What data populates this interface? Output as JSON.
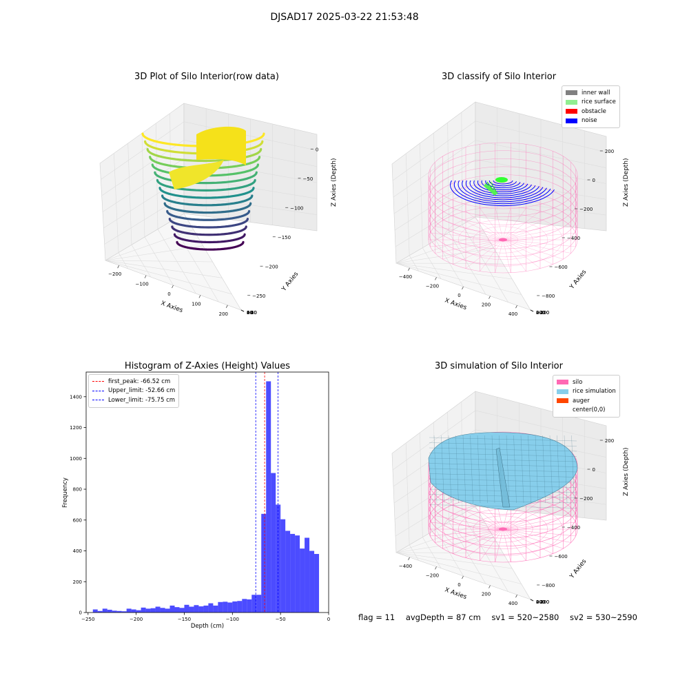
{
  "suptitle": "DJSAD17 2025-03-22 21:53:48",
  "footer": {
    "flag": "flag = 11",
    "avg_depth": "avgDepth = 87 cm",
    "sv1": "sv1 = 520~2580",
    "sv2": "sv2 = 530~2590"
  },
  "chart_data": [
    {
      "type": "scatter",
      "projection": "3d",
      "title": "3D Plot of Silo Interior(row data)",
      "xlabel": "X Axies",
      "ylabel": "Y Axies",
      "zlabel": "Z Axies (Depth)",
      "x_ticks": [
        "−200",
        "−100",
        "0",
        "100",
        "200"
      ],
      "y_ticks": [
        "−60",
        "−40",
        "−20",
        "0",
        "20",
        "40",
        "60"
      ],
      "z_ticks": [
        "−250",
        "−200",
        "−150",
        "−100",
        "−50",
        "0"
      ],
      "xlim": [
        -250,
        250
      ],
      "ylim": [
        -60,
        60
      ],
      "zlim": [
        -250,
        0
      ],
      "colormap": "viridis"
    },
    {
      "type": "scatter",
      "projection": "3d",
      "title": "3D classify of Silo Interior",
      "xlabel": "X Axies",
      "ylabel": "Y Axies",
      "zlabel": "Z Axies (Depth)",
      "x_ticks": [
        "−400",
        "−200",
        "0",
        "200",
        "400"
      ],
      "y_ticks": [
        "−400",
        "−200",
        "0",
        "200",
        "400"
      ],
      "z_ticks": [
        "−800",
        "−600",
        "−400",
        "−200",
        "0",
        "200"
      ],
      "legend": [
        {
          "label": "inner wall",
          "color": "#808080"
        },
        {
          "label": "rice surface",
          "color": "#90ee90"
        },
        {
          "label": "obstacle",
          "color": "#ff0000"
        },
        {
          "label": "noise",
          "color": "#0000ff"
        }
      ],
      "legend_position": "top-right"
    },
    {
      "type": "bar",
      "title": "Histogram of Z-Axies (Height) Values",
      "xlabel": "Depth (cm)",
      "ylabel": "Frequency",
      "xlim": [
        -252,
        0
      ],
      "ylim": [
        0,
        1560
      ],
      "x_ticks": [
        -250,
        -200,
        -150,
        -100,
        -50,
        0
      ],
      "y_ticks": [
        0,
        200,
        400,
        600,
        800,
        1000,
        1200,
        1400
      ],
      "bin_width": 5,
      "bin_starts": [
        -245,
        -240,
        -235,
        -230,
        -225,
        -220,
        -215,
        -210,
        -205,
        -200,
        -195,
        -190,
        -185,
        -180,
        -175,
        -170,
        -165,
        -160,
        -155,
        -150,
        -145,
        -140,
        -135,
        -130,
        -125,
        -120,
        -115,
        -110,
        -105,
        -100,
        -95,
        -90,
        -85,
        -80,
        -75,
        -70,
        -65,
        -60,
        -55,
        -50,
        -45,
        -40,
        -35,
        -30,
        -25,
        -20,
        -15
      ],
      "values": [
        20,
        10,
        25,
        18,
        12,
        10,
        8,
        25,
        20,
        15,
        32,
        25,
        28,
        38,
        30,
        25,
        45,
        35,
        30,
        50,
        38,
        48,
        40,
        45,
        60,
        45,
        68,
        70,
        65,
        72,
        75,
        88,
        85,
        115,
        115,
        640,
        1500,
        905,
        700,
        605,
        530,
        510,
        500,
        415,
        485,
        400,
        380
      ],
      "color": "#0000ff",
      "vlines": [
        {
          "label": "first_peak: -66.52 cm",
          "x": -66.52,
          "color": "#ff0000"
        },
        {
          "label": "Upper_limit: -52.66 cm",
          "x": -52.66,
          "color": "#0000ff"
        },
        {
          "label": "Lower_limit: -75.75 cm",
          "x": -75.75,
          "color": "#0000ff"
        }
      ],
      "legend_position": "top-left"
    },
    {
      "type": "surface",
      "projection": "3d",
      "title": "3D simulation of Silo Interior",
      "xlabel": "X Axies",
      "ylabel": "Y Axies",
      "zlabel": "Z Axies (Depth)",
      "x_ticks": [
        "−400",
        "−200",
        "0",
        "200",
        "400"
      ],
      "y_ticks": [
        "−400",
        "−200",
        "0",
        "200",
        "400"
      ],
      "z_ticks": [
        "−800",
        "−600",
        "−400",
        "−200",
        "0",
        "200"
      ],
      "legend": [
        {
          "label": "silo",
          "color": "#ff69b4"
        },
        {
          "label": "rice simulation",
          "color": "#87ceeb"
        },
        {
          "label": "auger",
          "color": "#ff4500"
        },
        {
          "label": "center(0,0)",
          "color": ""
        }
      ],
      "legend_position": "top-right"
    }
  ]
}
